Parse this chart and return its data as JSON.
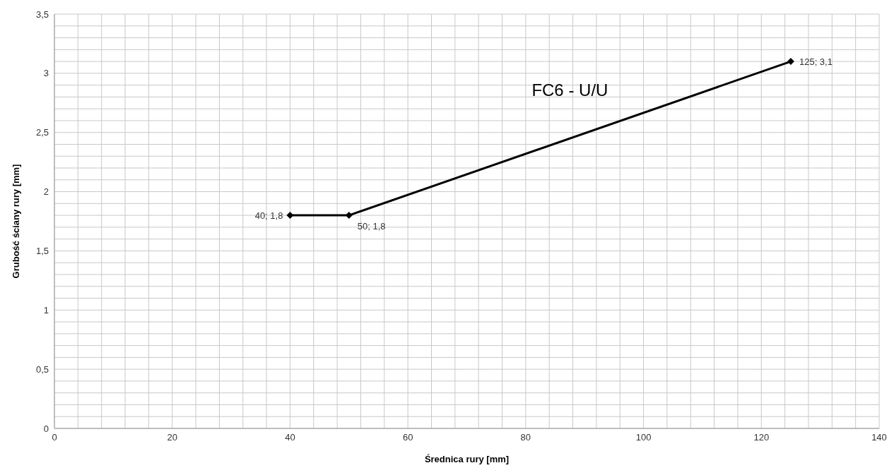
{
  "chart_data": {
    "type": "line",
    "xlabel": "Średnica rury [mm]",
    "ylabel": "Grubość ściany rury [mm]",
    "x": [
      40,
      50,
      125
    ],
    "series": [
      {
        "name": "FC6 - U/U",
        "color": "#000000",
        "values": [
          1.8,
          1.8,
          3.1
        ],
        "value_labels": [
          "40; 1,8",
          "50; 1,8",
          "125; 3,1"
        ]
      }
    ],
    "marker": "diamond",
    "line_style": "solid",
    "grid": true,
    "xlim": [
      0,
      140
    ],
    "xticks": [
      0,
      {
        "value": 4,
        "label": null
      },
      {
        "value": 8,
        "label": null
      },
      {
        "value": 12,
        "label": null
      },
      {
        "value": 16,
        "label": null
      },
      20,
      {
        "value": 24,
        "label": null
      },
      {
        "value": 28,
        "label": null
      },
      {
        "value": 32,
        "label": null
      },
      {
        "value": 36,
        "label": null
      },
      40,
      {
        "value": 44,
        "label": null
      },
      {
        "value": 48,
        "label": null
      },
      {
        "value": 52,
        "label": null
      },
      {
        "value": 56,
        "label": null
      },
      60,
      {
        "value": 64,
        "label": null
      },
      {
        "value": 68,
        "label": null
      },
      {
        "value": 72,
        "label": null
      },
      {
        "value": 76,
        "label": null
      },
      80,
      {
        "value": 84,
        "label": null
      },
      {
        "value": 88,
        "label": null
      },
      {
        "value": 92,
        "label": null
      },
      {
        "value": 96,
        "label": null
      },
      100,
      {
        "value": 104,
        "label": null
      },
      {
        "value": 108,
        "label": null
      },
      {
        "value": 112,
        "label": null
      },
      {
        "value": 116,
        "label": null
      },
      120,
      {
        "value": 124,
        "label": null
      },
      {
        "value": 128,
        "label": null
      },
      {
        "value": 132,
        "label": null
      },
      {
        "value": 136,
        "label": null
      },
      140
    ],
    "ylim": [
      0,
      3.5
    ],
    "yticks": [
      0,
      {
        "value": 0.1,
        "label": null
      },
      {
        "value": 0.2,
        "label": null
      },
      {
        "value": 0.3,
        "label": null
      },
      {
        "value": 0.4,
        "label": null
      },
      {
        "value": 0.5,
        "label": "0,5"
      },
      {
        "value": 0.6,
        "label": null
      },
      {
        "value": 0.7,
        "label": null
      },
      {
        "value": 0.8,
        "label": null
      },
      {
        "value": 0.9,
        "label": null
      },
      1,
      {
        "value": 1.1,
        "label": null
      },
      {
        "value": 1.2,
        "label": null
      },
      {
        "value": 1.3,
        "label": null
      },
      {
        "value": 1.4,
        "label": null
      },
      {
        "value": 1.5,
        "label": "1,5"
      },
      {
        "value": 1.6,
        "label": null
      },
      {
        "value": 1.7,
        "label": null
      },
      {
        "value": 1.8,
        "label": null
      },
      {
        "value": 1.9,
        "label": null
      },
      2,
      {
        "value": 2.1,
        "label": null
      },
      {
        "value": 2.2,
        "label": null
      },
      {
        "value": 2.3,
        "label": null
      },
      {
        "value": 2.4,
        "label": null
      },
      {
        "value": 2.5,
        "label": "2,5"
      },
      {
        "value": 2.6,
        "label": null
      },
      {
        "value": 2.7,
        "label": null
      },
      {
        "value": 2.8,
        "label": null
      },
      {
        "value": 2.9,
        "label": null
      },
      3,
      {
        "value": 3.1,
        "label": null
      },
      {
        "value": 3.2,
        "label": null
      },
      {
        "value": 3.3,
        "label": null
      },
      {
        "value": 3.4,
        "label": null
      },
      {
        "value": 3.5,
        "label": "3,5"
      }
    ]
  }
}
